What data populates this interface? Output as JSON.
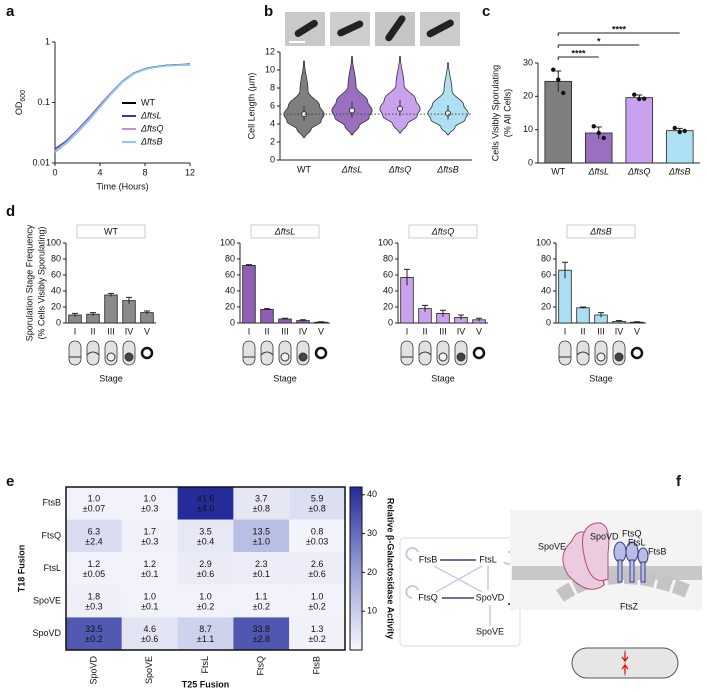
{
  "panels": [
    "a",
    "b",
    "c",
    "d",
    "e",
    "f"
  ],
  "chart_data": [
    {
      "type": "line",
      "xlabel": "Time (Hours)",
      "ylabel": "OD",
      "ylabel_sub": "600",
      "log_y": true,
      "x": [
        0,
        1,
        2,
        3,
        4,
        5,
        6,
        7,
        8,
        9,
        10,
        11,
        12
      ],
      "xlim": [
        0,
        12
      ],
      "xticks": [
        0,
        4,
        8,
        12
      ],
      "ylim": [
        0.01,
        1
      ],
      "yticks": [
        0.01,
        0.1,
        1
      ],
      "legend": "lower right",
      "series": [
        {
          "name": "WT",
          "color": "#000000",
          "values": [
            0.016,
            0.022,
            0.033,
            0.052,
            0.085,
            0.14,
            0.22,
            0.3,
            0.36,
            0.39,
            0.41,
            0.42,
            0.42
          ]
        },
        {
          "name": "ΔftsL",
          "color": "#3f3a9a",
          "values": [
            0.017,
            0.023,
            0.035,
            0.055,
            0.09,
            0.145,
            0.225,
            0.305,
            0.36,
            0.39,
            0.41,
            0.42,
            0.43
          ]
        },
        {
          "name": "ΔftsQ",
          "color": "#c58ce8",
          "values": [
            0.016,
            0.022,
            0.034,
            0.053,
            0.087,
            0.142,
            0.222,
            0.3,
            0.355,
            0.385,
            0.405,
            0.415,
            0.42
          ]
        },
        {
          "name": "ΔftsB",
          "color": "#86cfe8",
          "values": [
            0.015,
            0.021,
            0.032,
            0.05,
            0.083,
            0.138,
            0.218,
            0.298,
            0.355,
            0.385,
            0.405,
            0.415,
            0.42
          ]
        }
      ]
    },
    {
      "type": "violin",
      "ylabel": "Cell Length (µm)",
      "categories": [
        "WT",
        "ΔftsL",
        "ΔftsQ",
        "ΔftsB"
      ],
      "colors": [
        "#7f7f7f",
        "#9a6fc0",
        "#c8a2ec",
        "#ade0f3"
      ],
      "min": [
        2.5,
        2.8,
        3.0,
        2.8
      ],
      "q1": [
        4.3,
        4.7,
        4.9,
        4.5
      ],
      "median": [
        5.1,
        5.5,
        5.7,
        5.2
      ],
      "q3": [
        6.0,
        6.5,
        6.7,
        6.1
      ],
      "max": [
        11,
        11.5,
        11.5,
        10.8
      ],
      "reference_line": 5.1,
      "ylim": [
        0,
        12
      ],
      "yticks": [
        0,
        2,
        4,
        6,
        8,
        10,
        12
      ]
    },
    {
      "type": "bar",
      "ylabel": [
        "Cells Visibly Sporulating",
        "(% All Cells)"
      ],
      "categories": [
        "WT",
        "ΔftsL",
        "ΔftsQ",
        "ΔftsB"
      ],
      "colors": [
        "#7f7f7f",
        "#9a6fc0",
        "#c8a2ec",
        "#ade0f3"
      ],
      "values": [
        24.5,
        9,
        19.6,
        9.7
      ],
      "errors": [
        3.1,
        1.8,
        0.8,
        0.7
      ],
      "points": [
        [
          28,
          25,
          21
        ],
        [
          11,
          9,
          7.5
        ],
        [
          20.5,
          19.2,
          19.3
        ],
        [
          10.5,
          9.3,
          9.6
        ]
      ],
      "ylim": [
        0,
        30
      ],
      "yticks": [
        0,
        10,
        20,
        30
      ],
      "significance": [
        {
          "pair": [
            "WT",
            "ΔftsB"
          ],
          "label": "****"
        },
        {
          "pair": [
            "WT",
            "ΔftsQ"
          ],
          "label": "*"
        },
        {
          "pair": [
            "WT",
            "ΔftsL"
          ],
          "label": "****"
        }
      ]
    },
    {
      "type": "bar",
      "title": "WT",
      "ylabel": [
        "Sporulation Stage Frequency",
        "(% Cells Visibly Sporulating)"
      ],
      "xlabel": "Stage",
      "categories": [
        "I",
        "II",
        "III",
        "IV",
        "V"
      ],
      "color": "#8a8a8a",
      "values": [
        10,
        11,
        35,
        28,
        13
      ],
      "errors": [
        2,
        2,
        2,
        4,
        2
      ],
      "ylim": [
        0,
        100
      ],
      "yticks": [
        0,
        20,
        40,
        60,
        80,
        100
      ]
    },
    {
      "type": "bar",
      "title": "ΔftsL",
      "xlabel": "Stage",
      "categories": [
        "I",
        "II",
        "III",
        "IV",
        "V"
      ],
      "color": "#8e5fb3",
      "values": [
        72,
        17,
        5,
        3,
        1
      ],
      "errors": [
        1,
        1,
        1,
        1,
        0.5
      ],
      "ylim": [
        0,
        100
      ],
      "yticks": [
        0,
        20,
        40,
        60,
        80,
        100
      ]
    },
    {
      "type": "bar",
      "title": "ΔftsQ",
      "xlabel": "Stage",
      "categories": [
        "I",
        "II",
        "III",
        "IV",
        "V"
      ],
      "color": "#c9a1ec",
      "values": [
        57,
        18,
        12,
        7,
        4
      ],
      "errors": [
        10,
        4,
        4,
        3,
        2
      ],
      "ylim": [
        0,
        100
      ],
      "yticks": [
        0,
        20,
        40,
        60,
        80,
        100
      ]
    },
    {
      "type": "bar",
      "title": "ΔftsB",
      "xlabel": "Stage",
      "categories": [
        "I",
        "II",
        "III",
        "IV",
        "V"
      ],
      "color": "#a9def4",
      "values": [
        66,
        19,
        10,
        2,
        1
      ],
      "errors": [
        10,
        1,
        3,
        1,
        0.5
      ],
      "ylim": [
        0,
        100
      ],
      "yticks": [
        0,
        20,
        40,
        60,
        80,
        100
      ]
    },
    {
      "type": "heatmap",
      "xlabel": "T25 Fusion",
      "ylabel": "T18 Fusion",
      "rows": [
        "FtsB",
        "FtsQ",
        "FtsL",
        "SpoVE",
        "SpoVD"
      ],
      "columns": [
        "SpoVD",
        "SpoVE",
        "FtsL",
        "FtsQ",
        "FtsB"
      ],
      "values": [
        [
          1.0,
          1.0,
          41.6,
          3.7,
          5.9
        ],
        [
          6.3,
          1.7,
          3.5,
          13.5,
          0.8
        ],
        [
          1.2,
          1.2,
          2.9,
          2.3,
          2.6
        ],
        [
          1.8,
          1.0,
          1.0,
          1.1,
          1.0
        ],
        [
          33.5,
          4.6,
          8.7,
          33.8,
          1.3
        ]
      ],
      "value_labels": [
        [
          "1.0",
          "1.0",
          "41.6",
          "3.7",
          "5.9"
        ],
        [
          "6.3",
          "1.7",
          "3.5",
          "13.5",
          "0.8"
        ],
        [
          "1.2",
          "1.2",
          "2.9",
          "2.3",
          "2.6"
        ],
        [
          "1.8",
          "1.0",
          "1.0",
          "1.1",
          "1.0"
        ],
        [
          "33.5",
          "4.6",
          "8.7",
          "33.8",
          "1.3"
        ]
      ],
      "errors": [
        [
          0.07,
          0.3,
          4.0,
          0.8,
          0.8
        ],
        [
          2.4,
          0.3,
          0.4,
          1.0,
          0.03
        ],
        [
          0.05,
          0.1,
          0.6,
          0.1,
          0.6
        ],
        [
          0.3,
          0.1,
          0.2,
          0.2,
          0.2
        ],
        [
          0.2,
          0.6,
          1.1,
          2.8,
          0.2
        ]
      ],
      "error_labels": [
        [
          "±0.07",
          "±0.3",
          "±4.0",
          "±0.8",
          "±0.8"
        ],
        [
          "±2.4",
          "±0.3",
          "±0.4",
          "±1.0",
          "±0.03"
        ],
        [
          "±0.05",
          "±0.1",
          "±0.6",
          "±0.1",
          "±0.6"
        ],
        [
          "±0.3",
          "±0.1",
          "±0.2",
          "±0.2",
          "±0.2"
        ],
        [
          "±0.2",
          "±0.6",
          "±1.1",
          "±2.8",
          "±0.2"
        ]
      ],
      "colorbar": {
        "label": "Relative β-Galactosidase Activity",
        "lim": [
          0,
          42
        ],
        "ticks": [
          10,
          20,
          30,
          40
        ]
      }
    }
  ],
  "diagram": {
    "nodes": [
      "FtsB",
      "FtsL",
      "FtsQ",
      "SpoVD",
      "SpoVE"
    ]
  },
  "schematic": {
    "labels": [
      "SpoVD",
      "SpoVE",
      "FtsQ",
      "FtsL",
      "FtsB",
      "FtsZ"
    ]
  }
}
